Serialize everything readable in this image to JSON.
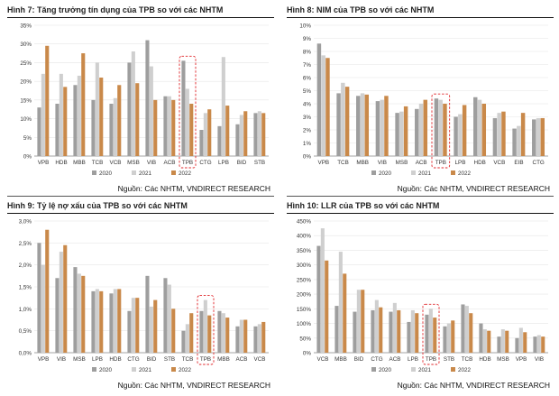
{
  "colors": {
    "y2020": "#9e9e9e",
    "y2021": "#cfcfcf",
    "y2022": "#c9894a",
    "highlight": "#e0262a"
  },
  "source_text": "Nguồn: Các NHTM, VNDIRECT RESEARCH",
  "chart_data": [
    {
      "type": "bar",
      "title": "Hình 7: Tăng trưởng tín dụng của TPB so với các NHTM",
      "categories": [
        "VPB",
        "HDB",
        "MBB",
        "TCB",
        "VCB",
        "MSB",
        "VIB",
        "ACB",
        "TPB",
        "CTG",
        "LPB",
        "BID",
        "STB"
      ],
      "highlight": "TPB",
      "y_ticks": [
        "0%",
        "5%",
        "10%",
        "15%",
        "20%",
        "25%",
        "30%",
        "35%"
      ],
      "ylim": [
        0,
        35
      ],
      "series": [
        {
          "name": "2020",
          "values": [
            13.0,
            14.0,
            19.0,
            15.0,
            14.0,
            25.0,
            31.0,
            16.0,
            25.5,
            7.0,
            8.0,
            8.5,
            11.5
          ]
        },
        {
          "name": "2021",
          "values": [
            22.0,
            22.0,
            21.5,
            25.0,
            15.5,
            28.0,
            24.0,
            16.0,
            18.0,
            11.5,
            26.5,
            11.0,
            12.0
          ]
        },
        {
          "name": "2022",
          "values": [
            29.5,
            18.5,
            27.5,
            21.0,
            19.0,
            19.5,
            15.0,
            15.0,
            14.0,
            12.5,
            13.5,
            12.0,
            11.5
          ]
        }
      ],
      "legend": [
        "2020",
        "2021",
        "2022"
      ]
    },
    {
      "type": "bar",
      "title": "Hình 8: NIM của TPB so với các NHTM",
      "categories": [
        "VPB",
        "TCB",
        "MBB",
        "VIB",
        "MSB",
        "ACB",
        "TPB",
        "LPB",
        "HDB",
        "VCB",
        "EIB",
        "CTG"
      ],
      "highlight": "TPB",
      "y_ticks": [
        "0%",
        "1%",
        "2%",
        "3%",
        "4%",
        "5%",
        "6%",
        "7%",
        "8%",
        "9%",
        "10%"
      ],
      "ylim": [
        0,
        10
      ],
      "series": [
        {
          "name": "2020",
          "values": [
            8.6,
            4.8,
            4.6,
            4.2,
            3.3,
            3.6,
            4.4,
            3.0,
            4.5,
            2.9,
            2.1,
            2.8
          ]
        },
        {
          "name": "2021",
          "values": [
            7.7,
            5.6,
            4.8,
            4.3,
            3.4,
            4.0,
            4.3,
            3.2,
            4.3,
            3.3,
            2.3,
            2.9
          ]
        },
        {
          "name": "2022",
          "values": [
            7.5,
            5.3,
            4.7,
            4.6,
            3.8,
            4.3,
            4.0,
            3.9,
            4.0,
            3.4,
            3.3,
            2.9
          ]
        }
      ],
      "legend": [
        "2020",
        "2021",
        "2022"
      ]
    },
    {
      "type": "bar",
      "title": "Hình 9: Tỷ lệ nợ xấu của TPB so với các NHTM",
      "categories": [
        "VPB",
        "VIB",
        "MSB",
        "LPB",
        "HDB",
        "CTG",
        "BID",
        "STB",
        "TCB",
        "TPB",
        "MBB",
        "ACB",
        "VCB"
      ],
      "highlight": "TPB",
      "y_ticks": [
        "0,0%",
        "0,5%",
        "1,0%",
        "1,5%",
        "2,0%",
        "2,5%",
        "3,0%"
      ],
      "ylim": [
        0,
        3
      ],
      "series": [
        {
          "name": "2020",
          "values": [
            2.5,
            1.7,
            1.95,
            1.4,
            1.35,
            0.95,
            1.75,
            1.7,
            0.5,
            0.95,
            0.95,
            0.6,
            0.6
          ]
        },
        {
          "name": "2021",
          "values": [
            2.0,
            2.3,
            1.8,
            1.45,
            1.45,
            1.25,
            1.05,
            1.55,
            0.65,
            1.2,
            0.9,
            0.75,
            0.65
          ]
        },
        {
          "name": "2022",
          "values": [
            2.8,
            2.45,
            1.75,
            1.4,
            1.45,
            1.25,
            1.2,
            1.0,
            0.9,
            0.85,
            0.8,
            0.75,
            0.7
          ]
        }
      ],
      "legend": [
        "2020",
        "2021",
        "2022"
      ]
    },
    {
      "type": "bar",
      "title": "Hình 10: LLR của TPB so với các NHTM",
      "categories": [
        "VCB",
        "MBB",
        "BID",
        "CTG",
        "ACB",
        "LPB",
        "TPB",
        "STB",
        "TCB",
        "HDB",
        "MSB",
        "VPB",
        "VIB"
      ],
      "highlight": "TPB",
      "y_ticks": [
        "0%",
        "50%",
        "100%",
        "150%",
        "200%",
        "250%",
        "300%",
        "350%",
        "400%",
        "450%"
      ],
      "ylim": [
        0,
        450
      ],
      "series": [
        {
          "name": "2020",
          "values": [
            365,
            160,
            140,
            145,
            140,
            105,
            130,
            90,
            165,
            100,
            55,
            50,
            55
          ]
        },
        {
          "name": "2021",
          "values": [
            425,
            345,
            215,
            180,
            170,
            145,
            150,
            100,
            160,
            80,
            80,
            85,
            60
          ]
        },
        {
          "name": "2022",
          "values": [
            315,
            270,
            215,
            155,
            145,
            135,
            120,
            110,
            135,
            75,
            75,
            70,
            55
          ]
        }
      ],
      "legend": [
        "2020",
        "2021",
        "2022"
      ]
    }
  ]
}
